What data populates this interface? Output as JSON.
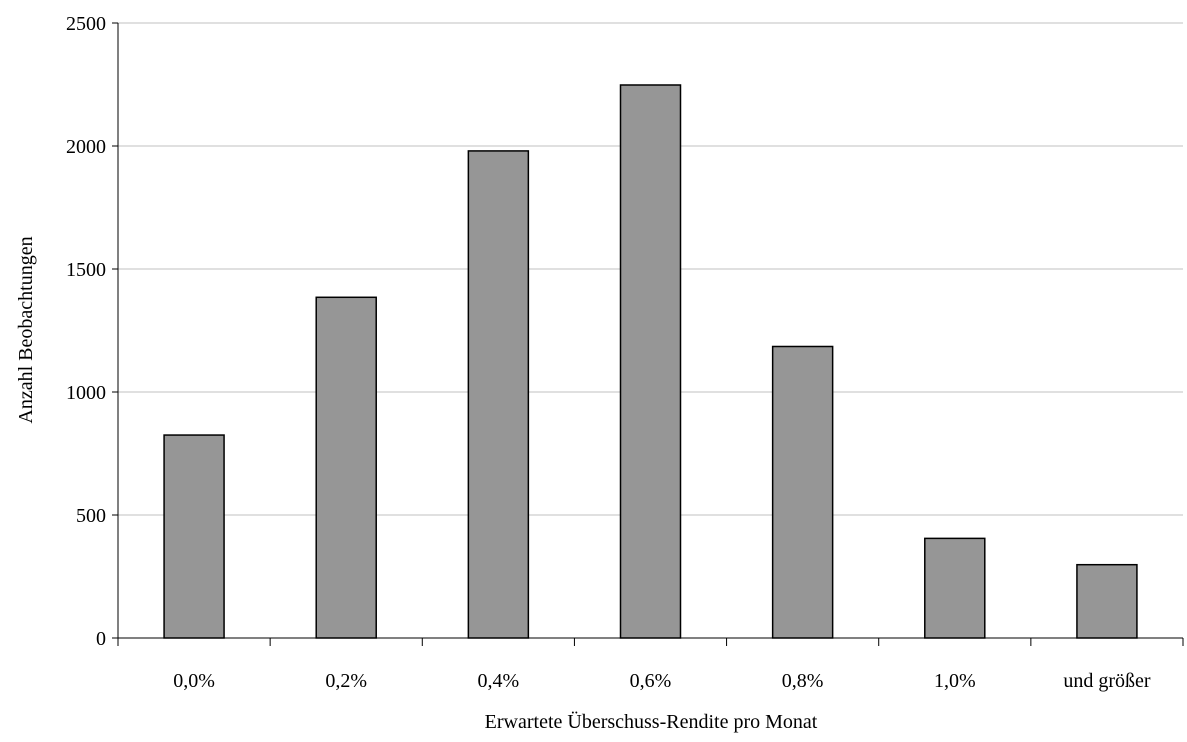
{
  "chart_data": {
    "type": "bar",
    "categories": [
      "0,0%",
      "0,2%",
      "0,4%",
      "0,6%",
      "0,8%",
      "1,0%",
      "und größer"
    ],
    "values": [
      825,
      1385,
      1980,
      2248,
      1185,
      405,
      298
    ],
    "xlabel": "Erwartete Überschuss-Rendite pro Monat",
    "ylabel": "Anzahl Beobachtungen",
    "ylim": [
      0,
      2500
    ],
    "yticks": [
      0,
      500,
      1000,
      1500,
      2000,
      2500
    ],
    "grid": true,
    "legend": "none",
    "colors": {
      "bar_fill": "#969696",
      "bar_stroke": "#000000",
      "grid": "#c0c0c0",
      "axis": "#000000"
    }
  }
}
